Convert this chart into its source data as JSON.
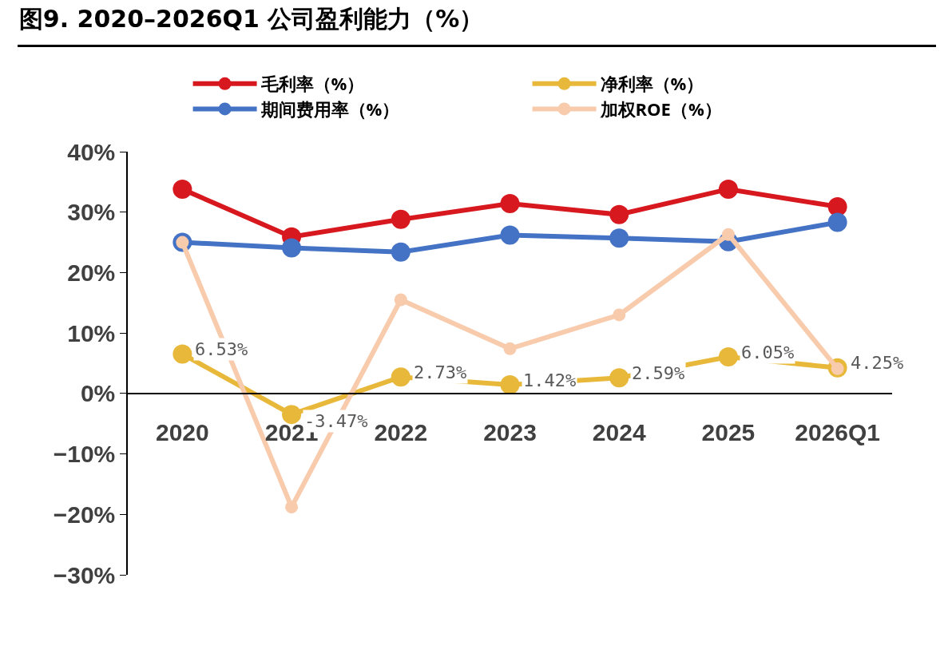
{
  "chart_data": {
    "type": "line",
    "title": "图9. 2020–2026Q1 公司盈利能力（%）",
    "categories": [
      "2020",
      "2021",
      "2022",
      "2023",
      "2024",
      "2025",
      "2026Q1"
    ],
    "series": [
      {
        "name": "毛利率（%）",
        "color": "#d7191f",
        "values": [
          33.8,
          25.9,
          28.8,
          31.4,
          29.6,
          33.8,
          30.9
        ]
      },
      {
        "name": "净利率（%）",
        "color": "#e8b83a",
        "values": [
          6.53,
          -3.47,
          2.73,
          1.42,
          2.59,
          6.05,
          4.25
        ],
        "value_labels": [
          "6.53%",
          "-3.47%",
          "2.73%",
          "1.42%",
          "2.59%",
          "6.05%",
          "4.25%"
        ]
      },
      {
        "name": "期间费用率（%）",
        "color": "#4472c4",
        "values": [
          25.0,
          24.1,
          23.4,
          26.2,
          25.7,
          25.1,
          28.3
        ]
      },
      {
        "name": "加权ROE（%）",
        "color": "#f8cbad",
        "values": [
          25.0,
          -18.8,
          15.5,
          7.4,
          13.0,
          26.3,
          4.1
        ]
      }
    ],
    "ylim": [
      -30,
      40
    ],
    "yticks": [
      {
        "value": -30,
        "label": "−30%"
      },
      {
        "value": -20,
        "label": "−20%"
      },
      {
        "value": -10,
        "label": "−10%"
      },
      {
        "value": 0,
        "label": "0%"
      },
      {
        "value": 10,
        "label": "10%"
      },
      {
        "value": 20,
        "label": "20%"
      },
      {
        "value": 30,
        "label": "30%"
      },
      {
        "value": 40,
        "label": "40%"
      }
    ],
    "grid": false,
    "legend": "top",
    "marker": "circle",
    "line_style": "solid"
  }
}
